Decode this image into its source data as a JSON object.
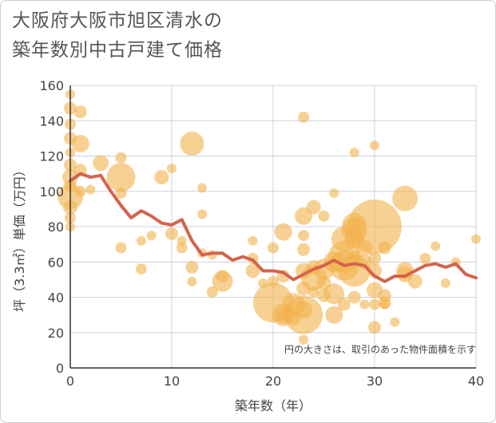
{
  "title_lines": [
    "大阪府大阪市旭区清水の",
    "築年数別中古戸建て価格"
  ],
  "colors": {
    "bubble": "#f2b24c",
    "line": "#d4644d",
    "grid": "#c8d4e0",
    "axis": "#333333"
  },
  "chart_data": {
    "type": "scatter",
    "xlabel": "築年数（年）",
    "ylabel": "坪（3.3㎡）単価（万円）",
    "xlim": [
      0,
      40
    ],
    "ylim": [
      0,
      160
    ],
    "xticks": [
      "0",
      "10",
      "20",
      "30",
      "40"
    ],
    "yticks": [
      "0",
      "20",
      "40",
      "60",
      "80",
      "100",
      "120",
      "140",
      "160"
    ],
    "note": "円の大きさは、取引のあった物件面積を示す",
    "bubbles": [
      {
        "x": 0,
        "y": 155,
        "s": 6
      },
      {
        "x": 0,
        "y": 147,
        "s": 8
      },
      {
        "x": 0,
        "y": 138,
        "s": 7
      },
      {
        "x": 0,
        "y": 130,
        "s": 8
      },
      {
        "x": 0,
        "y": 122,
        "s": 6
      },
      {
        "x": 0,
        "y": 115,
        "s": 8
      },
      {
        "x": 0,
        "y": 108,
        "s": 10
      },
      {
        "x": 0,
        "y": 103,
        "s": 8
      },
      {
        "x": 0,
        "y": 97,
        "s": 16
      },
      {
        "x": 0,
        "y": 91,
        "s": 9
      },
      {
        "x": 0,
        "y": 85,
        "s": 7
      },
      {
        "x": 0,
        "y": 80,
        "s": 6
      },
      {
        "x": 1,
        "y": 145,
        "s": 8
      },
      {
        "x": 1,
        "y": 127,
        "s": 11
      },
      {
        "x": 1,
        "y": 112,
        "s": 8
      },
      {
        "x": 1,
        "y": 100,
        "s": 7
      },
      {
        "x": 2,
        "y": 101,
        "s": 6
      },
      {
        "x": 3,
        "y": 116,
        "s": 10
      },
      {
        "x": 5,
        "y": 119,
        "s": 7
      },
      {
        "x": 5,
        "y": 108,
        "s": 18
      },
      {
        "x": 5,
        "y": 99,
        "s": 7
      },
      {
        "x": 5,
        "y": 68,
        "s": 7
      },
      {
        "x": 7,
        "y": 72,
        "s": 6
      },
      {
        "x": 7,
        "y": 56,
        "s": 7
      },
      {
        "x": 8,
        "y": 75,
        "s": 6
      },
      {
        "x": 9,
        "y": 108,
        "s": 9
      },
      {
        "x": 10,
        "y": 113,
        "s": 6
      },
      {
        "x": 10,
        "y": 76,
        "s": 8
      },
      {
        "x": 11,
        "y": 72,
        "s": 6
      },
      {
        "x": 11,
        "y": 68,
        "s": 7
      },
      {
        "x": 12,
        "y": 127,
        "s": 15
      },
      {
        "x": 12,
        "y": 57,
        "s": 8
      },
      {
        "x": 12,
        "y": 49,
        "s": 6
      },
      {
        "x": 13,
        "y": 102,
        "s": 6
      },
      {
        "x": 13,
        "y": 87,
        "s": 6
      },
      {
        "x": 13,
        "y": 65,
        "s": 6
      },
      {
        "x": 14,
        "y": 64,
        "s": 6
      },
      {
        "x": 14,
        "y": 43,
        "s": 7
      },
      {
        "x": 15,
        "y": 49,
        "s": 13
      },
      {
        "x": 15,
        "y": 52,
        "s": 8
      },
      {
        "x": 18,
        "y": 72,
        "s": 6
      },
      {
        "x": 18,
        "y": 62,
        "s": 7
      },
      {
        "x": 18,
        "y": 55,
        "s": 9
      },
      {
        "x": 19,
        "y": 48,
        "s": 6
      },
      {
        "x": 20,
        "y": 68,
        "s": 7
      },
      {
        "x": 20,
        "y": 49,
        "s": 7
      },
      {
        "x": 20,
        "y": 37,
        "s": 25
      },
      {
        "x": 21,
        "y": 77,
        "s": 11
      },
      {
        "x": 21,
        "y": 52,
        "s": 8
      },
      {
        "x": 21,
        "y": 30,
        "s": 14
      },
      {
        "x": 21,
        "y": 29,
        "s": 9
      },
      {
        "x": 22,
        "y": 36,
        "s": 14
      },
      {
        "x": 22,
        "y": 28,
        "s": 9
      },
      {
        "x": 23,
        "y": 142,
        "s": 7
      },
      {
        "x": 23,
        "y": 86,
        "s": 11
      },
      {
        "x": 23,
        "y": 75,
        "s": 7
      },
      {
        "x": 23,
        "y": 67,
        "s": 8
      },
      {
        "x": 23,
        "y": 55,
        "s": 10
      },
      {
        "x": 23,
        "y": 45,
        "s": 9
      },
      {
        "x": 23,
        "y": 33,
        "s": 11
      },
      {
        "x": 23,
        "y": 30,
        "s": 24
      },
      {
        "x": 23,
        "y": 16,
        "s": 6
      },
      {
        "x": 24,
        "y": 91,
        "s": 9
      },
      {
        "x": 24,
        "y": 57,
        "s": 9
      },
      {
        "x": 24,
        "y": 51,
        "s": 16
      },
      {
        "x": 24,
        "y": 43,
        "s": 7
      },
      {
        "x": 25,
        "y": 86,
        "s": 7
      },
      {
        "x": 25,
        "y": 56,
        "s": 13
      },
      {
        "x": 25,
        "y": 48,
        "s": 9
      },
      {
        "x": 25,
        "y": 41,
        "s": 8
      },
      {
        "x": 26,
        "y": 99,
        "s": 6
      },
      {
        "x": 26,
        "y": 60,
        "s": 13
      },
      {
        "x": 26,
        "y": 42,
        "s": 13
      },
      {
        "x": 26,
        "y": 30,
        "s": 11
      },
      {
        "x": 27,
        "y": 73,
        "s": 16
      },
      {
        "x": 27,
        "y": 63,
        "s": 20
      },
      {
        "x": 27,
        "y": 58,
        "s": 19
      },
      {
        "x": 27,
        "y": 36,
        "s": 8
      },
      {
        "x": 28,
        "y": 122,
        "s": 6
      },
      {
        "x": 28,
        "y": 81,
        "s": 15
      },
      {
        "x": 28,
        "y": 78,
        "s": 16
      },
      {
        "x": 28,
        "y": 73,
        "s": 12
      },
      {
        "x": 28,
        "y": 62,
        "s": 10
      },
      {
        "x": 28,
        "y": 55,
        "s": 20
      },
      {
        "x": 28,
        "y": 40,
        "s": 8
      },
      {
        "x": 29,
        "y": 68,
        "s": 10
      },
      {
        "x": 29,
        "y": 60,
        "s": 9
      },
      {
        "x": 29,
        "y": 36,
        "s": 6
      },
      {
        "x": 30,
        "y": 126,
        "s": 6
      },
      {
        "x": 30,
        "y": 80,
        "s": 34
      },
      {
        "x": 30,
        "y": 62,
        "s": 8
      },
      {
        "x": 30,
        "y": 55,
        "s": 9
      },
      {
        "x": 30,
        "y": 44,
        "s": 10
      },
      {
        "x": 30,
        "y": 36,
        "s": 7
      },
      {
        "x": 30,
        "y": 23,
        "s": 8
      },
      {
        "x": 31,
        "y": 68,
        "s": 8
      },
      {
        "x": 31,
        "y": 41,
        "s": 8
      },
      {
        "x": 31,
        "y": 37,
        "s": 8
      },
      {
        "x": 31,
        "y": 36,
        "s": 6
      },
      {
        "x": 32,
        "y": 26,
        "s": 6
      },
      {
        "x": 33,
        "y": 96,
        "s": 16
      },
      {
        "x": 33,
        "y": 55,
        "s": 11
      },
      {
        "x": 33,
        "y": 53,
        "s": 10
      },
      {
        "x": 34,
        "y": 49,
        "s": 9
      },
      {
        "x": 35,
        "y": 62,
        "s": 7
      },
      {
        "x": 36,
        "y": 69,
        "s": 6
      },
      {
        "x": 37,
        "y": 48,
        "s": 6
      },
      {
        "x": 38,
        "y": 60,
        "s": 6
      },
      {
        "x": 40,
        "y": 73,
        "s": 6
      }
    ],
    "series": [
      {
        "type": "line",
        "x": [
          0,
          1,
          2,
          3,
          4,
          5,
          6,
          7,
          8,
          9,
          10,
          11,
          12,
          13,
          14,
          15,
          16,
          17,
          18,
          19,
          20,
          21,
          22,
          23,
          24,
          25,
          26,
          27,
          28,
          29,
          30,
          31,
          32,
          33,
          34,
          35,
          36,
          37,
          38,
          39,
          40
        ],
        "y": [
          106,
          110,
          108,
          109,
          100,
          92,
          85,
          89,
          86,
          82,
          81,
          84,
          72,
          64,
          65,
          65,
          61,
          63,
          61,
          55,
          55,
          54,
          50,
          53,
          56,
          58,
          61,
          58,
          59,
          58,
          52,
          49,
          52,
          52,
          55,
          58,
          59,
          57,
          59,
          53,
          51
        ]
      }
    ]
  }
}
